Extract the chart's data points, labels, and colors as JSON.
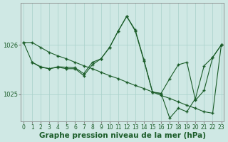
{
  "title": "Graphe pression niveau de la mer (hPa)",
  "bg_color": "#cfe8e4",
  "line_color": "#1a5c28",
  "grid_color": "#a8d0ca",
  "spine_color": "#888888",
  "xlim": [
    -0.3,
    23.3
  ],
  "ylim": [
    1024.45,
    1026.85
  ],
  "yticks": [
    1025.0,
    1026.0
  ],
  "xticks": [
    0,
    1,
    2,
    3,
    4,
    5,
    6,
    7,
    8,
    9,
    10,
    11,
    12,
    13,
    14,
    15,
    16,
    17,
    18,
    19,
    20,
    21,
    22,
    23
  ],
  "series1_x": [
    0,
    1,
    2,
    3,
    4,
    5,
    6,
    7,
    8,
    9,
    10,
    11,
    12,
    13,
    14,
    15,
    16,
    17,
    18,
    19,
    20,
    21,
    22,
    23
  ],
  "series1_y": [
    1026.05,
    1026.05,
    1025.95,
    1025.85,
    1025.78,
    1025.72,
    1025.65,
    1025.58,
    1025.52,
    1025.45,
    1025.38,
    1025.32,
    1025.25,
    1025.18,
    1025.12,
    1025.05,
    1024.98,
    1024.92,
    1024.85,
    1024.78,
    1024.72,
    1024.65,
    1024.62,
    1026.0
  ],
  "series2_x": [
    0,
    1,
    2,
    3,
    4,
    5,
    6,
    7,
    8,
    9,
    10,
    11,
    12,
    13,
    14,
    15,
    16,
    17,
    18,
    19,
    20,
    21,
    22,
    23
  ],
  "series2_y": [
    1026.05,
    1025.65,
    1025.56,
    1025.52,
    1025.56,
    1025.55,
    1025.54,
    1025.42,
    1025.65,
    1025.72,
    1025.95,
    1026.28,
    1026.58,
    1026.28,
    1025.68,
    1025.04,
    1025.02,
    1024.52,
    1024.72,
    1024.65,
    1024.92,
    1025.58,
    1025.75,
    1026.0
  ],
  "series3_x": [
    1,
    2,
    3,
    4,
    5,
    6,
    7,
    8,
    9,
    10,
    11,
    12,
    13,
    14,
    15,
    16,
    17,
    18,
    19,
    20,
    21,
    22,
    23
  ],
  "series3_y": [
    1025.65,
    1025.55,
    1025.52,
    1025.55,
    1025.52,
    1025.52,
    1025.38,
    1025.6,
    1025.72,
    1025.95,
    1026.28,
    1026.58,
    1026.3,
    1025.7,
    1025.05,
    1025.02,
    1025.32,
    1025.6,
    1025.65,
    1024.88,
    1025.08,
    1025.75,
    1026.0
  ],
  "title_fontsize": 7.5,
  "tick_fontsize": 5.5,
  "marker_size": 3.5,
  "linewidth": 0.8
}
